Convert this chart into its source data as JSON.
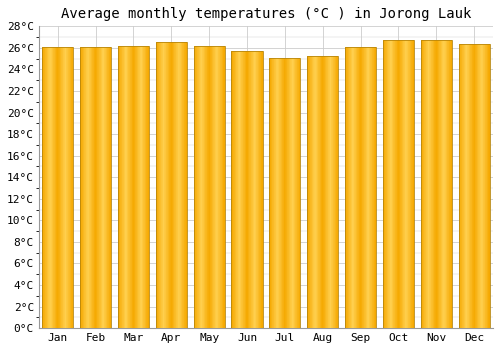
{
  "title": "Average monthly temperatures (°C ) in Jorong Lauk",
  "months": [
    "Jan",
    "Feb",
    "Mar",
    "Apr",
    "May",
    "Jun",
    "Jul",
    "Aug",
    "Sep",
    "Oct",
    "Nov",
    "Dec"
  ],
  "values": [
    26.1,
    26.1,
    26.2,
    26.5,
    26.2,
    25.7,
    25.1,
    25.2,
    26.1,
    26.7,
    26.7,
    26.4
  ],
  "bar_color_outer": "#F5A800",
  "bar_color_inner": "#FFD050",
  "bar_edge_color": "#B8860B",
  "background_color": "#FFFFFF",
  "plot_bg_color": "#FFFFFF",
  "grid_color": "#CCCCCC",
  "ylim": [
    0,
    28
  ],
  "ytick_step": 2,
  "title_fontsize": 10,
  "tick_fontsize": 8,
  "font_family": "monospace"
}
